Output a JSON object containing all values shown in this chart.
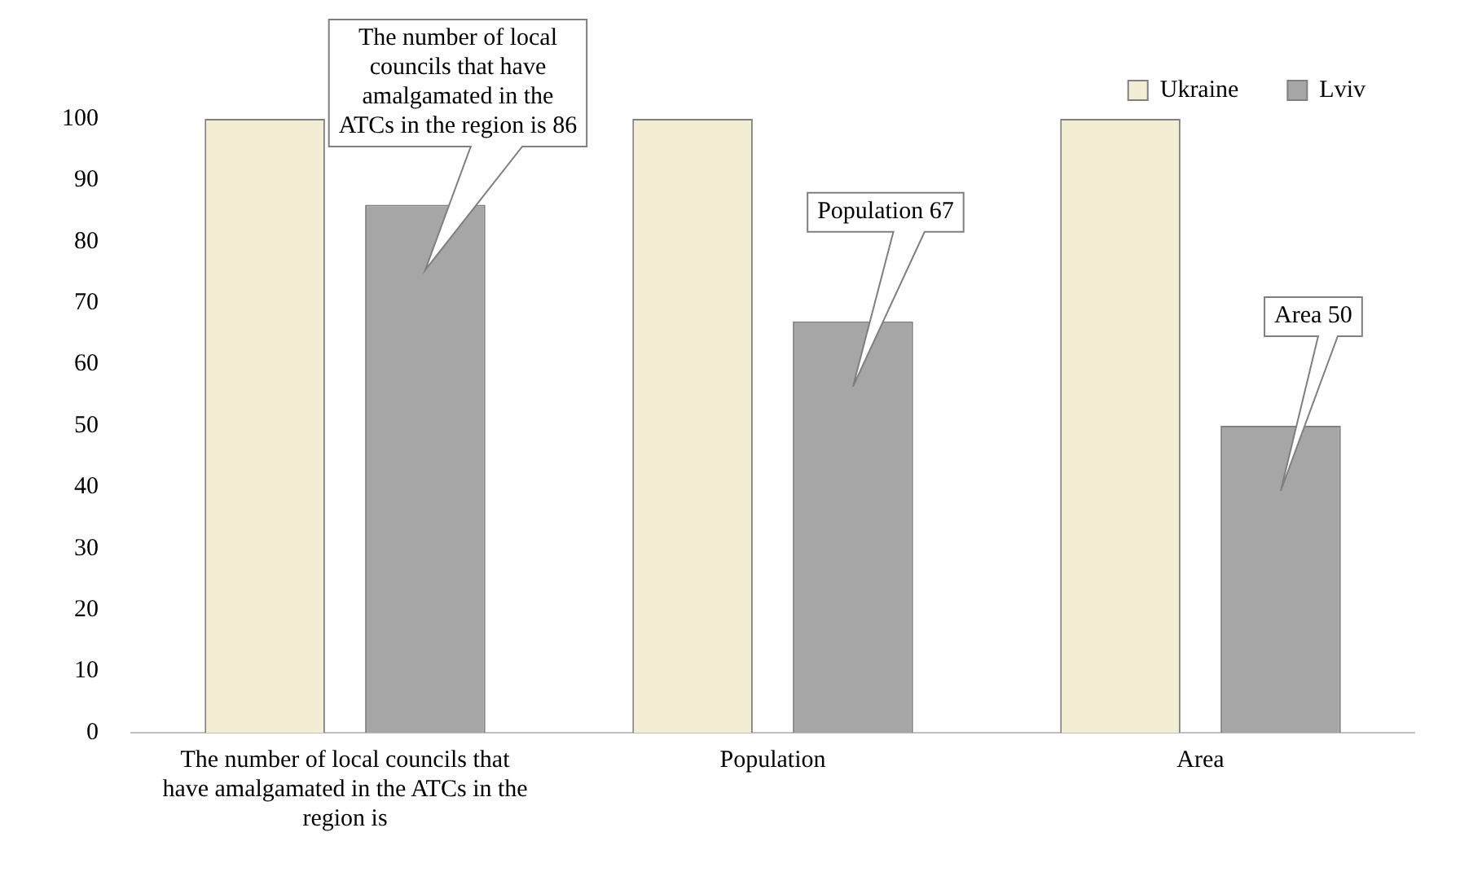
{
  "chart_data": {
    "type": "bar",
    "categories": [
      "The number of local councils that have amalgamated in the ATCs in the region is",
      "Population",
      "Area"
    ],
    "series": [
      {
        "name": "Ukraine",
        "color": "#f2edd3",
        "values": [
          100,
          100,
          100
        ]
      },
      {
        "name": "Lviv",
        "color": "#a6a6a6",
        "values": [
          86,
          67,
          50
        ]
      }
    ],
    "ylim": [
      0,
      100
    ],
    "yticks": [
      0,
      10,
      20,
      30,
      40,
      50,
      60,
      70,
      80,
      90,
      100
    ],
    "grid": false,
    "legend": "top right",
    "annotations": [
      "The number of local councils that have amalgamated in the ATCs in the region is 86",
      "Population 67",
      "Area 50"
    ]
  }
}
